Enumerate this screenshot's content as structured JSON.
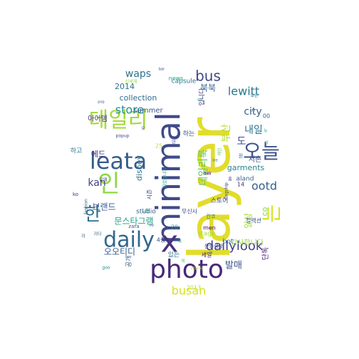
{
  "words": [
    {
      "text": "layer",
      "color": "#e1dd2b"
    },
    {
      "text": "minimal",
      "color": "#3e4a89"
    },
    {
      "text": "x",
      "color": "#46327e"
    },
    {
      "text": "photo",
      "color": "#482878"
    },
    {
      "text": "daily",
      "color": "#31688e"
    },
    {
      "text": "leata",
      "color": "#365c8d"
    },
    {
      "text": "오늘",
      "color": "#3b528b"
    },
    {
      "text": "데일리",
      "color": "#a2da37"
    },
    {
      "text": "인",
      "color": "#8fd744"
    },
    {
      "text": "한",
      "color": "#2d708e"
    },
    {
      "text": "는",
      "color": "#d2e21b"
    },
    {
      "text": "dailylook",
      "color": "#424086"
    },
    {
      "text": "bus",
      "color": "#3f4889"
    },
    {
      "text": "waps",
      "color": "#2c728e"
    },
    {
      "text": "store",
      "color": "#21918c"
    },
    {
      "text": "lewitt",
      "color": "#2a788e"
    },
    {
      "text": "city",
      "color": "#355e8d"
    },
    {
      "text": "kan",
      "color": "#404387"
    },
    {
      "text": "ootd",
      "color": "#355f8d"
    },
    {
      "text": "내일",
      "color": "#2d718e"
    },
    {
      "text": "busan",
      "color": "#d5e21a"
    },
    {
      "text": "발매",
      "color": "#3b518b"
    },
    {
      "text": "데일리룩",
      "color": "#5ec962"
    },
    {
      "text": "부산",
      "color": "#b5de2b"
    },
    {
      "text": "북북",
      "color": "#32658e"
    },
    {
      "text": "도",
      "color": "#3d4d8a"
    },
    {
      "text": "일상",
      "color": "#a5db36"
    },
    {
      "text": "문스타그램",
      "color": "#1fa187"
    },
    {
      "text": "브랜드",
      "color": "#39568c"
    },
    {
      "text": "오오티디",
      "color": "#38598c"
    },
    {
      "text": "감사합니다",
      "color": "#98d83e"
    },
    {
      "text": "co",
      "color": "#86d549"
    },
    {
      "text": "garments",
      "color": "#25858e"
    },
    {
      "text": "collection",
      "color": "#2e6d8e"
    },
    {
      "text": "2014",
      "color": "#2d708e"
    },
    {
      "text": "summer",
      "color": "#3b528b"
    },
    {
      "text": "아이템",
      "color": "#46307e"
    },
    {
      "text": "disney",
      "color": "#2b748e"
    },
    {
      "text": "stage",
      "color": "#a8db34"
    },
    {
      "text": "studio",
      "color": "#355f8d"
    },
    {
      "text": "스토어",
      "color": "#3e4989"
    },
    {
      "text": "capsule",
      "color": "#29798e"
    },
    {
      "text": "news",
      "color": "#20a386"
    },
    {
      "text": "2013",
      "color": "#b8de29"
    },
    {
      "text": "bot",
      "color": "#2c718e"
    },
    {
      "text": "aland",
      "color": "#32648e"
    },
    {
      "text": "서촌",
      "color": "#3d4e8a"
    },
    {
      "text": "단독",
      "color": "#481f70"
    },
    {
      "text": "공개",
      "color": "#355e8d"
    },
    {
      "text": "에드",
      "color": "#463480"
    },
    {
      "text": "하고",
      "color": "#2a778e"
    },
    {
      "text": "하는",
      "color": "#3d4e8a"
    },
    {
      "text": "있는",
      "color": "#2d708e"
    },
    {
      "text": "입니다",
      "color": "#453882"
    },
    {
      "text": "00",
      "color": "#365d8d"
    },
    {
      "text": "20",
      "color": "#20a486"
    },
    {
      "text": "14",
      "color": "#46327e"
    },
    {
      "text": "25",
      "color": "#bddf26"
    },
    {
      "text": "aw",
      "color": "#481b6d"
    },
    {
      "text": "무신사",
      "color": "#3f4788"
    },
    {
      "text": "컬렉션",
      "color": "#3a548c"
    },
    {
      "text": "세일",
      "color": "#481467"
    },
    {
      "text": "시즌",
      "color": "#3e4989"
    },
    {
      "text": "men",
      "color": "#440154"
    },
    {
      "text": "zara",
      "color": "#39568c"
    },
    {
      "text": "칸코",
      "color": "#2c718e"
    },
    {
      "text": "리타",
      "color": "#2f6c8e"
    },
    {
      "text": "제인",
      "color": "#5ec962"
    },
    {
      "text": "문화생활",
      "color": "#3b518b"
    },
    {
      "text": "원",
      "color": "#2c728e"
    },
    {
      "text": "goo",
      "color": "#21918c"
    },
    {
      "text": "4층",
      "color": "#3a548c"
    },
    {
      "text": "1층",
      "color": "#24878e"
    },
    {
      "text": "ko",
      "color": "#46327e"
    },
    {
      "text": "fashion",
      "color": "#355f8d"
    },
    {
      "text": "모델",
      "color": "#453882"
    },
    {
      "text": "신세계",
      "color": "#8fd744"
    },
    {
      "text": "popup",
      "color": "#404387"
    },
    {
      "text": "모든",
      "color": "#2a788e"
    },
    {
      "text": "되었습니다",
      "color": "#1fa187"
    },
    {
      "text": "flagship",
      "color": "#3e4989"
    },
    {
      "text": "레이어",
      "color": "#c2df23"
    },
    {
      "text": "우",
      "color": "#29798e"
    },
    {
      "text": "오",
      "color": "#31688e"
    },
    {
      "text": "의",
      "color": "#35b779"
    },
    {
      "text": "라",
      "color": "#3b528b"
    },
    {
      "text": "뉴",
      "color": "#22a884"
    },
    {
      "text": "에",
      "color": "#5ec962"
    },
    {
      "text": "만",
      "color": "#404387"
    },
    {
      "text": "홈",
      "color": "#3e4989"
    },
    {
      "text": "세",
      "color": "#26828e"
    },
    {
      "text": "by",
      "color": "#3b528b"
    },
    {
      "text": "lee",
      "color": "#2a788e"
    },
    {
      "text": "pop",
      "color": "#355f8d"
    },
    {
      "text": "on",
      "color": "#2d708e"
    },
    {
      "text": "bar",
      "color": "#46327e"
    },
    {
      "text": "kai",
      "color": "#20a386"
    }
  ]
}
